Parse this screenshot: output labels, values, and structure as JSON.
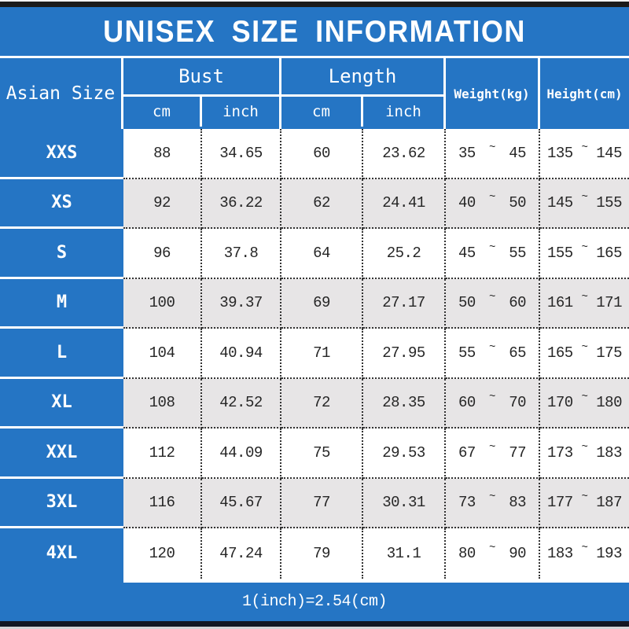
{
  "title": "UNISEX SIZE INFORMATION",
  "footer_note": "1(inch)=2.54(cm)",
  "colors": {
    "accent_blue": "#2575C4",
    "row_alternate": "#E7E5E6",
    "top_bar": "#1b1b1b",
    "bottom_bar": "#131722",
    "header_text": "#ffffff"
  },
  "table": {
    "range_separator": "~",
    "header": {
      "asian_size": "Asian Size",
      "bust": "Bust",
      "length": "Length",
      "cm": "cm",
      "inch": "inch",
      "weight": "Weight(kg)",
      "height": "Height(cm)"
    },
    "rows": [
      {
        "size": "XXS",
        "bust_cm": "88",
        "bust_inch": "34.65",
        "length_cm": "60",
        "length_inch": "23.62",
        "weight_min": "35",
        "weight_max": "45",
        "height_min": "135",
        "height_max": "145"
      },
      {
        "size": "XS",
        "bust_cm": "92",
        "bust_inch": "36.22",
        "length_cm": "62",
        "length_inch": "24.41",
        "weight_min": "40",
        "weight_max": "50",
        "height_min": "145",
        "height_max": "155"
      },
      {
        "size": "S",
        "bust_cm": "96",
        "bust_inch": "37.8",
        "length_cm": "64",
        "length_inch": "25.2",
        "weight_min": "45",
        "weight_max": "55",
        "height_min": "155",
        "height_max": "165"
      },
      {
        "size": "M",
        "bust_cm": "100",
        "bust_inch": "39.37",
        "length_cm": "69",
        "length_inch": "27.17",
        "weight_min": "50",
        "weight_max": "60",
        "height_min": "161",
        "height_max": "171"
      },
      {
        "size": "L",
        "bust_cm": "104",
        "bust_inch": "40.94",
        "length_cm": "71",
        "length_inch": "27.95",
        "weight_min": "55",
        "weight_max": "65",
        "height_min": "165",
        "height_max": "175"
      },
      {
        "size": "XL",
        "bust_cm": "108",
        "bust_inch": "42.52",
        "length_cm": "72",
        "length_inch": "28.35",
        "weight_min": "60",
        "weight_max": "70",
        "height_min": "170",
        "height_max": "180"
      },
      {
        "size": "XXL",
        "bust_cm": "112",
        "bust_inch": "44.09",
        "length_cm": "75",
        "length_inch": "29.53",
        "weight_min": "67",
        "weight_max": "77",
        "height_min": "173",
        "height_max": "183"
      },
      {
        "size": "3XL",
        "bust_cm": "116",
        "bust_inch": "45.67",
        "length_cm": "77",
        "length_inch": "30.31",
        "weight_min": "73",
        "weight_max": "83",
        "height_min": "177",
        "height_max": "187"
      },
      {
        "size": "4XL",
        "bust_cm": "120",
        "bust_inch": "47.24",
        "length_cm": "79",
        "length_inch": "31.1",
        "weight_min": "80",
        "weight_max": "90",
        "height_min": "183",
        "height_max": "193"
      }
    ]
  }
}
